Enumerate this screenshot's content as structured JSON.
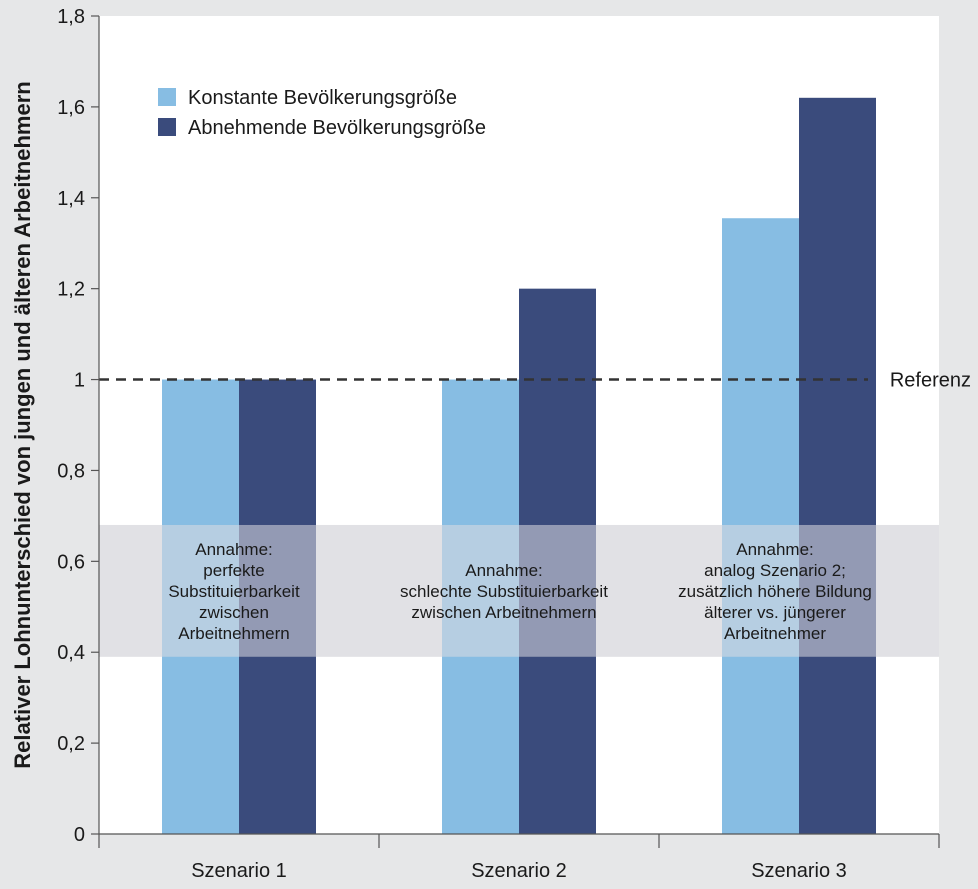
{
  "chart_data": {
    "type": "bar",
    "categories": [
      "Szenario 1",
      "Szenario 2",
      "Szenario 3"
    ],
    "series": [
      {
        "name": "Konstante Bevölkerungsgröße",
        "color": "#87bde3",
        "values": [
          1.0,
          1.0,
          1.355
        ]
      },
      {
        "name": "Abnehmende Bevölkerungsgröße",
        "color": "#3a4b7c",
        "values": [
          1.0,
          1.2,
          1.62
        ]
      }
    ],
    "ylabel": "Relativer Lohnunterschied von jungen und älteren Arbeitnehmern",
    "xlabel": "",
    "ylim": [
      0,
      1.8
    ],
    "yticks": [
      "0",
      "0,2",
      "0,4",
      "0,6",
      "0,8",
      "1",
      "1,2",
      "1,4",
      "1,6",
      "1,8"
    ],
    "reference": {
      "value": 1.0,
      "label": "Referenz"
    },
    "band": {
      "range": [
        0.39,
        0.68
      ],
      "annotations": [
        [
          "Annahme:",
          "perfekte",
          "Substituierbarkeit",
          "zwischen",
          "Arbeitnehmern"
        ],
        [
          "Annahme:",
          "schlechte Substituierbarkeit",
          "zwischen Arbeitnehmern"
        ],
        [
          "Annahme:",
          "analog Szenario 2;",
          "zusätzlich höhere Bildung",
          "älterer vs. jüngerer",
          "Arbeitnehmer"
        ]
      ]
    },
    "legend_position": "top-left",
    "grid": false
  }
}
